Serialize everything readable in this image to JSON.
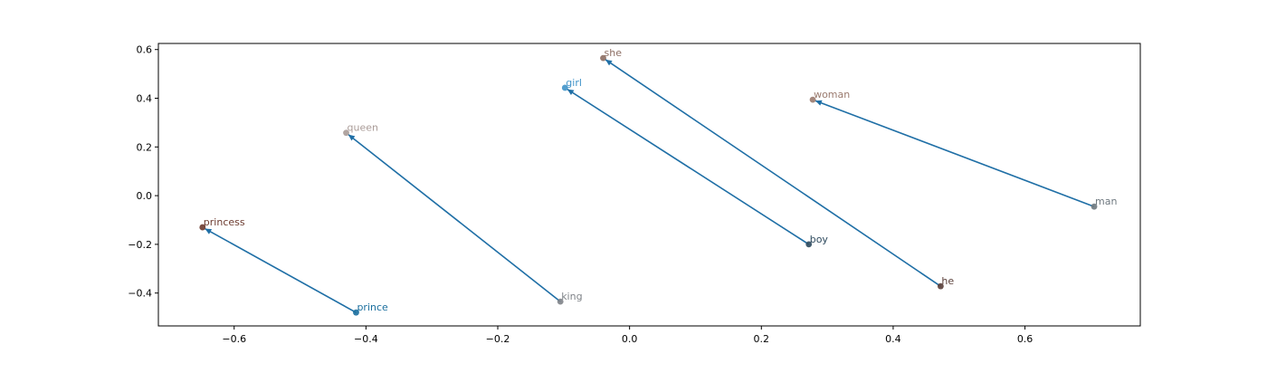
{
  "chart_data": {
    "type": "scatter",
    "title": "",
    "xlabel": "",
    "ylabel": "",
    "xlim": [
      -0.715,
      0.775
    ],
    "ylim": [
      -0.535,
      0.625
    ],
    "grid": false,
    "x_ticks": [
      -0.6,
      -0.4,
      -0.2,
      0.0,
      0.2,
      0.4,
      0.6
    ],
    "x_tick_labels": [
      "−0.6",
      "−0.4",
      "−0.2",
      "0.0",
      "0.2",
      "0.4",
      "0.6"
    ],
    "y_ticks": [
      -0.4,
      -0.2,
      0.0,
      0.2,
      0.4,
      0.6
    ],
    "y_tick_labels": [
      "−0.4",
      "−0.2",
      "0.0",
      "0.2",
      "0.4",
      "0.6"
    ],
    "points": [
      {
        "label": "she",
        "x": -0.04,
        "y": 0.565,
        "color": "#8c6d62"
      },
      {
        "label": "girl",
        "x": -0.098,
        "y": 0.443,
        "color": "#3f93c9"
      },
      {
        "label": "woman",
        "x": 0.278,
        "y": 0.394,
        "color": "#9a7a6e"
      },
      {
        "label": "queen",
        "x": -0.43,
        "y": 0.258,
        "color": "#a99b97"
      },
      {
        "label": "man",
        "x": 0.705,
        "y": -0.045,
        "color": "#6f7980"
      },
      {
        "label": "princess",
        "x": -0.648,
        "y": -0.13,
        "color": "#6b3a2e"
      },
      {
        "label": "boy",
        "x": 0.272,
        "y": -0.2,
        "color": "#2e4a5e"
      },
      {
        "label": "he",
        "x": 0.472,
        "y": -0.372,
        "color": "#5a3f3a"
      },
      {
        "label": "king",
        "x": -0.105,
        "y": -0.435,
        "color": "#7f8388"
      },
      {
        "label": "prince",
        "x": -0.415,
        "y": -0.48,
        "color": "#1b6f9e"
      }
    ],
    "arrows": [
      {
        "from": "man",
        "to": "woman"
      },
      {
        "from": "boy",
        "to": "girl"
      },
      {
        "from": "he",
        "to": "she"
      },
      {
        "from": "king",
        "to": "queen"
      },
      {
        "from": "prince",
        "to": "princess"
      }
    ],
    "arrow_color": "#1f6fa6"
  }
}
